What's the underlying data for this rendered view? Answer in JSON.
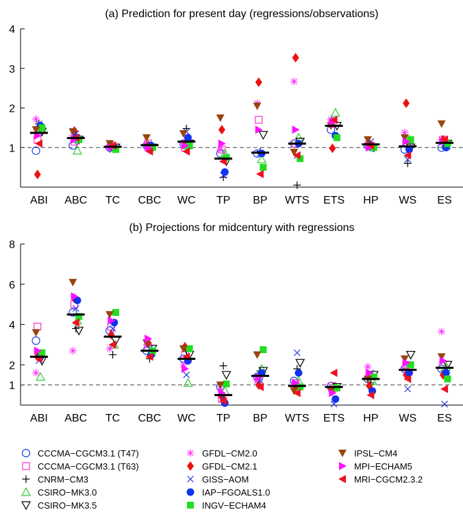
{
  "colors": {
    "CCCMA-CGCM3.1 (T47)": "#1f3fe6",
    "CCCMA-CGCM3.1 (T63)": "#ff33cc",
    "CNRM-CM3": "#000000",
    "CSIRO-MK3.0": "#33cc33",
    "CSIRO-MK3.5": "#000000",
    "GFDL-CM2.0": "#ff33ff",
    "GFDL-CM2.1": "#ee1111",
    "GISS-AOM": "#2233dd",
    "IAP-FGOALS1.0": "#1133ee",
    "INGV-ECHAM4": "#22dd22",
    "IPSL-CM4": "#994411",
    "MPI-ECHAM5": "#ff11ff",
    "MRI-CGCM2.3.2": "#ee1122",
    "ensemble_mean": "#000000",
    "reference_line": "#444444"
  },
  "legend": [
    {
      "name": "CCCMA-CGCM3.1 (T47)",
      "marker": "circle-open",
      "label": "CCCMA−CGCM3.1 (T47)"
    },
    {
      "name": "CCCMA-CGCM3.1 (T63)",
      "marker": "square-open",
      "label": "CCCMA−CGCM3.1 (T63)"
    },
    {
      "name": "CNRM-CM3",
      "marker": "plus",
      "label": "CNRM−CM3"
    },
    {
      "name": "CSIRO-MK3.0",
      "marker": "triangle-up-open",
      "label": "CSIRO−MK3.0"
    },
    {
      "name": "CSIRO-MK3.5",
      "marker": "triangle-down-open",
      "label": "CSIRO−MK3.5"
    },
    {
      "name": "GFDL-CM2.0",
      "marker": "asterisk",
      "label": "GFDL−CM2.0"
    },
    {
      "name": "GFDL-CM2.1",
      "marker": "diamond-filled",
      "label": "GFDL−CM2.1"
    },
    {
      "name": "GISS-AOM",
      "marker": "x",
      "label": "GISS−AOM"
    },
    {
      "name": "IAP-FGOALS1.0",
      "marker": "circle-filled",
      "label": "IAP−FGOALS1.0"
    },
    {
      "name": "INGV-ECHAM4",
      "marker": "square-filled",
      "label": "INGV−ECHAM4"
    },
    {
      "name": "IPSL-CM4",
      "marker": "triangle-down-filled",
      "label": "IPSL−CM4"
    },
    {
      "name": "MPI-ECHAM5",
      "marker": "triangle-right-filled",
      "label": "MPI−ECHAM5"
    },
    {
      "name": "MRI-CGCM2.3.2",
      "marker": "triangle-left-filled",
      "label": "MRI−CGCM2.3.2"
    }
  ],
  "chart_data": [
    {
      "type": "scatter",
      "title": "(a) Prediction for present day (regressions/observations)",
      "categories": [
        "ABI",
        "ABC",
        "TC",
        "CBC",
        "WC",
        "TP",
        "BP",
        "WTS",
        "ETS",
        "HP",
        "WS",
        "ES"
      ],
      "ylim": [
        0,
        4
      ],
      "yticks": [
        1,
        2,
        3,
        4
      ],
      "reference_line": 1,
      "ensemble_mean": [
        1.37,
        1.24,
        1.02,
        1.06,
        1.15,
        0.72,
        0.87,
        1.1,
        1.55,
        1.08,
        1.03,
        1.12
      ],
      "series": [
        {
          "name": "CCCMA-CGCM3.1 (T47)",
          "values": [
            0.92,
            1.05,
            1.0,
            1.05,
            1.1,
            0.85,
            0.85,
            1.1,
            1.45,
            1.05,
            0.95,
            1.0
          ]
        },
        {
          "name": "CCCMA-CGCM3.1 (T63)",
          "values": [
            1.2,
            1.15,
            1.05,
            1.1,
            1.0,
            0.95,
            1.7,
            1.1,
            1.6,
            1.05,
            1.1,
            1.2
          ]
        },
        {
          "name": "CNRM-CM3",
          "values": [
            1.6,
            1.3,
            1.0,
            1.05,
            1.48,
            0.25,
            0.9,
            0.05,
            1.65,
            1.0,
            0.6,
            1.15
          ]
        },
        {
          "name": "CSIRO-MK3.0",
          "values": [
            1.5,
            0.92,
            1.0,
            1.05,
            1.05,
            0.85,
            0.7,
            1.25,
            1.88,
            1.02,
            1.2,
            1.05
          ]
        },
        {
          "name": "CSIRO-MK3.5",
          "values": [
            1.4,
            1.2,
            1.0,
            1.0,
            1.1,
            0.65,
            1.32,
            1.15,
            1.55,
            1.0,
            1.0,
            1.1
          ]
        },
        {
          "name": "GFDL-CM2.0",
          "values": [
            1.72,
            1.3,
            1.05,
            1.1,
            1.1,
            0.95,
            2.12,
            2.67,
            1.7,
            1.1,
            1.38,
            1.2
          ]
        },
        {
          "name": "GFDL-CM2.1",
          "values": [
            0.32,
            1.42,
            1.05,
            1.05,
            1.1,
            1.45,
            2.65,
            3.27,
            0.98,
            1.1,
            2.12,
            1.2
          ]
        },
        {
          "name": "GISS-AOM",
          "values": [
            1.6,
            1.35,
            0.95,
            1.0,
            1.4,
            0.3,
            0.85,
            0.8,
            1.7,
            1.15,
            0.7,
            1.1
          ]
        },
        {
          "name": "IAP-FGOALS1.0",
          "values": [
            1.55,
            1.25,
            1.0,
            1.05,
            1.25,
            0.38,
            0.85,
            1.1,
            1.3,
            1.0,
            0.95,
            1.0
          ]
        },
        {
          "name": "INGV-ECHAM4",
          "values": [
            1.5,
            1.2,
            0.95,
            1.0,
            1.05,
            0.75,
            0.5,
            0.72,
            1.25,
            1.0,
            1.2,
            1.1
          ]
        },
        {
          "name": "IPSL-CM4",
          "values": [
            1.45,
            1.4,
            1.1,
            1.25,
            1.35,
            1.75,
            2.05,
            0.88,
            1.55,
            1.2,
            1.25,
            1.6
          ]
        },
        {
          "name": "MPI-ECHAM5",
          "values": [
            1.3,
            1.2,
            1.0,
            1.0,
            1.05,
            1.1,
            1.45,
            1.45,
            1.65,
            1.0,
            1.15,
            1.15
          ]
        },
        {
          "name": "MRI-CGCM2.3.2",
          "values": [
            1.1,
            1.25,
            1.05,
            0.9,
            0.9,
            0.65,
            0.33,
            0.8,
            1.7,
            1.05,
            0.8,
            1.2
          ]
        }
      ]
    },
    {
      "type": "scatter",
      "title": "(b) Projections for midcentury with regressions",
      "categories": [
        "ABI",
        "ABC",
        "TC",
        "CBC",
        "WC",
        "TP",
        "BP",
        "WTS",
        "ETS",
        "HP",
        "WS",
        "ES"
      ],
      "ylim": [
        0,
        8
      ],
      "yticks": [
        1,
        2,
        4,
        6,
        8
      ],
      "reference_line": 1,
      "ensemble_mean": [
        2.4,
        4.5,
        3.4,
        2.7,
        2.3,
        0.5,
        1.45,
        0.95,
        0.9,
        1.3,
        1.75,
        1.85
      ],
      "series": [
        {
          "name": "CCCMA-CGCM3.1 (T47)",
          "values": [
            3.2,
            4.6,
            3.7,
            2.7,
            2.3,
            0.9,
            1.4,
            1.2,
            0.95,
            1.3,
            1.8,
            1.8
          ]
        },
        {
          "name": "CCCMA-CGCM3.1 (T63)",
          "values": [
            3.9,
            5.0,
            3.9,
            2.9,
            2.5,
            0.3,
            1.3,
            1.1,
            0.95,
            1.5,
            2.0,
            2.0
          ]
        },
        {
          "name": "CNRM-CM3",
          "values": [
            2.5,
            3.8,
            2.5,
            2.3,
            2.7,
            1.95,
            1.7,
            1.8,
            0.8,
            1.1,
            1.6,
            1.7
          ]
        },
        {
          "name": "CSIRO-MK3.0",
          "values": [
            1.4,
            4.2,
            3.0,
            2.6,
            1.1,
            0.7,
            1.8,
            1.2,
            0.9,
            1.2,
            1.9,
            1.9
          ]
        },
        {
          "name": "CSIRO-MK3.5",
          "values": [
            2.2,
            3.7,
            3.2,
            2.8,
            2.5,
            1.5,
            1.7,
            2.1,
            0.9,
            1.5,
            2.5,
            2.0
          ]
        },
        {
          "name": "GFDL-CM2.0",
          "values": [
            1.6,
            2.7,
            2.8,
            3.0,
            2.0,
            0.8,
            1.2,
            1.0,
            0.8,
            1.9,
            1.8,
            3.65
          ]
        },
        {
          "name": "GFDL-CM2.1",
          "values": [
            2.4,
            5.3,
            3.5,
            3.1,
            2.9,
            0.4,
            1.0,
            0.95,
            0.7,
            0.95,
            1.5,
            1.5
          ]
        },
        {
          "name": "GISS-AOM",
          "values": [
            2.2,
            4.8,
            3.8,
            2.8,
            1.5,
            0.4,
            1.2,
            2.6,
            0.05,
            1.6,
            0.8,
            0.05
          ]
        },
        {
          "name": "IAP-FGOALS1.0",
          "values": [
            2.4,
            5.2,
            4.1,
            2.5,
            2.2,
            0.1,
            1.6,
            1.6,
            0.3,
            0.7,
            1.6,
            1.6
          ]
        },
        {
          "name": "INGV-ECHAM4",
          "values": [
            2.6,
            4.4,
            4.6,
            2.7,
            2.8,
            1.05,
            2.75,
            0.9,
            0.85,
            1.4,
            2.0,
            1.3
          ]
        },
        {
          "name": "IPSL-CM4",
          "values": [
            3.6,
            6.1,
            4.5,
            3.1,
            2.8,
            1.0,
            2.5,
            0.7,
            0.7,
            1.3,
            2.3,
            2.4
          ]
        },
        {
          "name": "MPI-ECHAM5",
          "values": [
            2.7,
            5.4,
            4.2,
            3.3,
            1.8,
            0.6,
            1.4,
            1.1,
            0.6,
            1.6,
            2.1,
            2.2
          ]
        },
        {
          "name": "MRI-CGCM2.3.2",
          "values": [
            2.3,
            4.1,
            3.0,
            2.4,
            2.4,
            0.2,
            0.9,
            0.6,
            1.6,
            0.5,
            1.3,
            0.8
          ]
        }
      ]
    }
  ]
}
